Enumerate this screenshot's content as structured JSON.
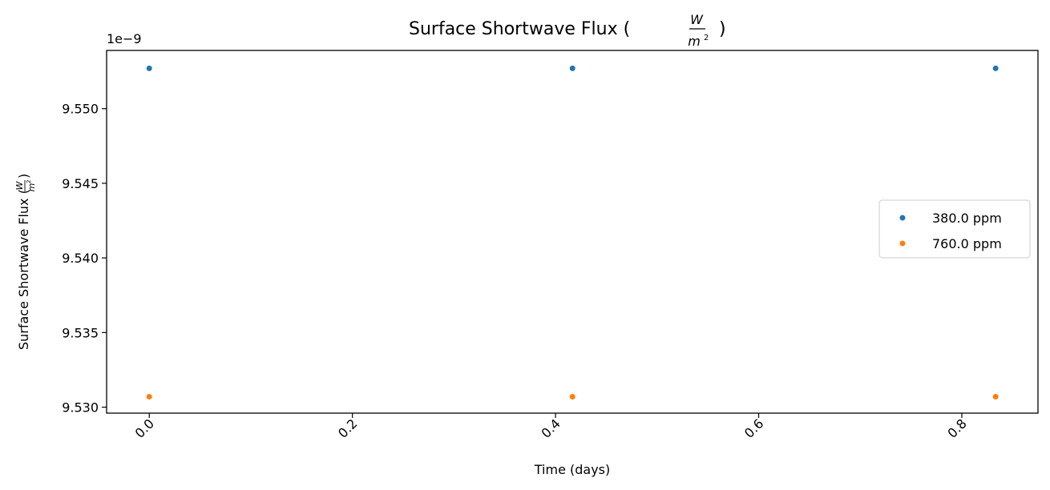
{
  "chart_data": {
    "type": "scatter",
    "title_main": "Surface Shortwave Flux (",
    "title_unit_num": "W",
    "title_unit_den": "m",
    "title_unit_sup": "2",
    "title_close": ")",
    "ylabel_main": "Surface Shortwave Flux (",
    "ylabel_unit_num": "W",
    "ylabel_unit_den": "m",
    "ylabel_unit_sup": "2",
    "ylabel_close": ")",
    "xlabel": "Time (days)",
    "offset_text": "1e−9",
    "xlim": [
      -0.042,
      0.875
    ],
    "ylim": [
      9.5296,
      9.5539
    ],
    "x_ticks": [
      0.0,
      0.2,
      0.4,
      0.6,
      0.8
    ],
    "x_tick_labels": [
      "0.0",
      "0.2",
      "0.4",
      "0.6",
      "0.8"
    ],
    "y_ticks": [
      9.53,
      9.535,
      9.54,
      9.545,
      9.55
    ],
    "y_tick_labels": [
      "9.530",
      "9.535",
      "9.540",
      "9.545",
      "9.550"
    ],
    "legend_position": "center-right",
    "series": [
      {
        "name": "380.0 ppm",
        "color": "#1f77b4",
        "x": [
          0.0,
          0.4167,
          0.8333
        ],
        "y": [
          9.5527,
          9.5527,
          9.5527
        ]
      },
      {
        "name": "760.0 ppm",
        "color": "#ff7f0e",
        "x": [
          0.0,
          0.4167,
          0.8333
        ],
        "y": [
          9.5307,
          9.5307,
          9.5307
        ]
      }
    ]
  }
}
